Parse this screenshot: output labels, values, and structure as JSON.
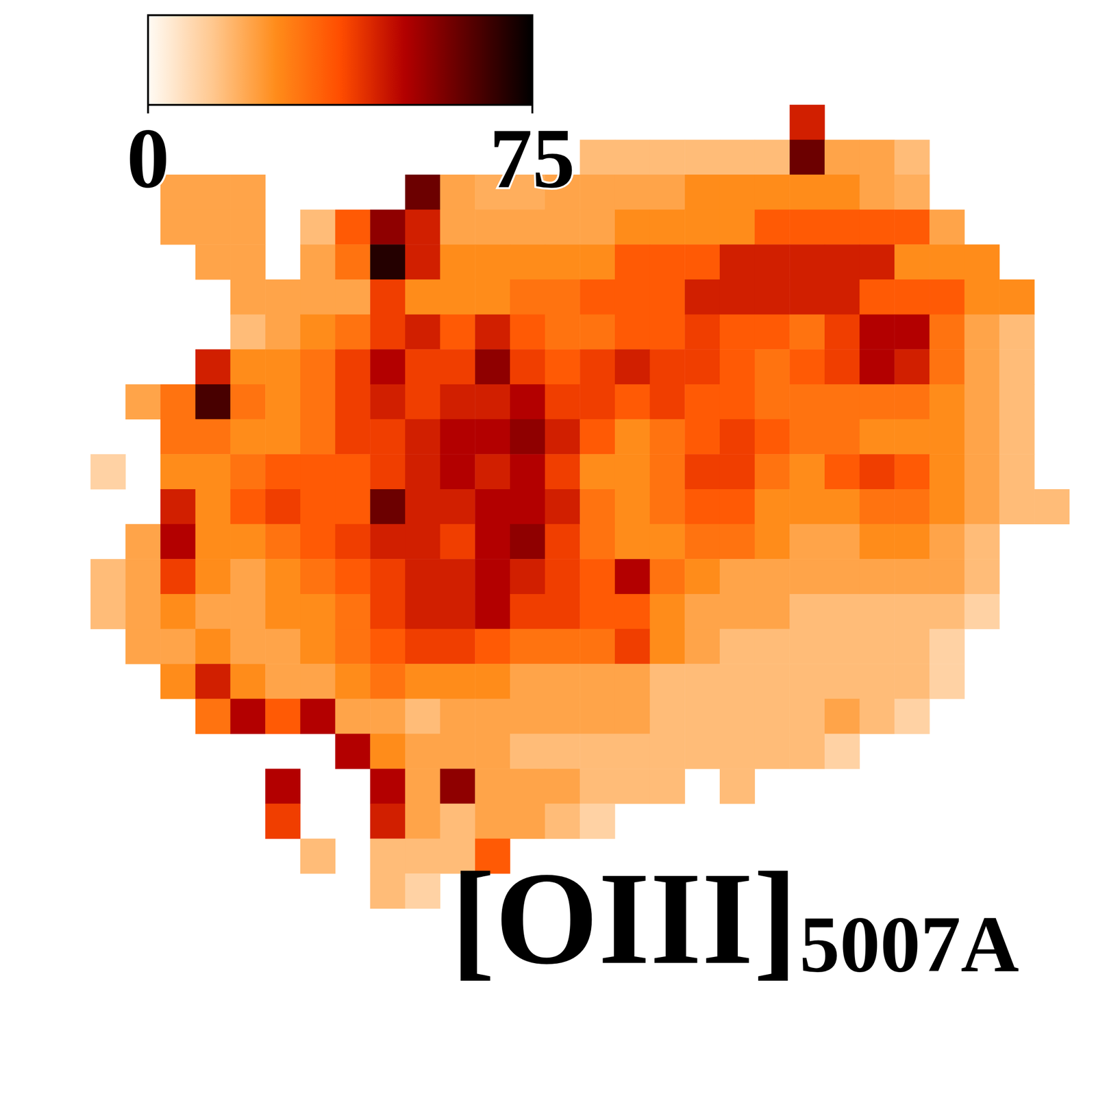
{
  "chart_data": {
    "type": "heatmap",
    "title": "[OIII]",
    "subtitle": "5007A",
    "tick_labels": false,
    "colorbar": {
      "range": [
        0,
        75
      ],
      "ticks": [
        0,
        75
      ]
    },
    "cells": [
      [
        null,
        null,
        null,
        null,
        null,
        null,
        null,
        null,
        null,
        null,
        null,
        null,
        null,
        null,
        null,
        null,
        null,
        null,
        null,
        null,
        45,
        null,
        null,
        null,
        null,
        null,
        null,
        null
      ],
      [
        null,
        null,
        null,
        null,
        null,
        null,
        null,
        null,
        null,
        null,
        null,
        null,
        null,
        null,
        15,
        15,
        15,
        15,
        15,
        15,
        60,
        20,
        20,
        15,
        null,
        null,
        null,
        null
      ],
      [
        null,
        null,
        20,
        20,
        20,
        null,
        null,
        null,
        null,
        60,
        20,
        18,
        18,
        20,
        20,
        20,
        20,
        25,
        25,
        25,
        25,
        25,
        20,
        18,
        null,
        null,
        null,
        null
      ],
      [
        null,
        null,
        20,
        20,
        20,
        null,
        15,
        35,
        55,
        45,
        20,
        20,
        20,
        20,
        20,
        25,
        25,
        25,
        25,
        35,
        35,
        35,
        35,
        35,
        20,
        null,
        null,
        null
      ],
      [
        null,
        null,
        null,
        20,
        20,
        null,
        20,
        30,
        70,
        45,
        25,
        25,
        25,
        25,
        25,
        35,
        35,
        35,
        45,
        45,
        45,
        45,
        45,
        25,
        25,
        25,
        null,
        null
      ],
      [
        null,
        null,
        null,
        null,
        20,
        20,
        20,
        20,
        40,
        25,
        25,
        25,
        30,
        30,
        35,
        35,
        35,
        45,
        45,
        45,
        45,
        45,
        35,
        35,
        35,
        25,
        25,
        null
      ],
      [
        null,
        null,
        null,
        null,
        15,
        20,
        25,
        30,
        40,
        45,
        35,
        45,
        35,
        30,
        30,
        35,
        35,
        40,
        35,
        35,
        30,
        40,
        50,
        50,
        30,
        20,
        15,
        null
      ],
      [
        null,
        null,
        null,
        45,
        25,
        25,
        30,
        40,
        50,
        40,
        40,
        55,
        40,
        35,
        40,
        45,
        40,
        40,
        35,
        30,
        35,
        40,
        50,
        45,
        30,
        20,
        15,
        null
      ],
      [
        null,
        20,
        30,
        65,
        30,
        25,
        30,
        40,
        45,
        40,
        45,
        45,
        50,
        40,
        40,
        35,
        40,
        35,
        35,
        30,
        30,
        30,
        30,
        30,
        25,
        20,
        15,
        null
      ],
      [
        null,
        null,
        30,
        30,
        25,
        25,
        30,
        40,
        40,
        45,
        50,
        50,
        55,
        45,
        35,
        25,
        30,
        35,
        40,
        35,
        30,
        30,
        25,
        25,
        25,
        20,
        15,
        null
      ],
      [
        10,
        null,
        25,
        25,
        30,
        35,
        35,
        35,
        40,
        45,
        50,
        45,
        50,
        40,
        25,
        25,
        30,
        40,
        40,
        30,
        25,
        35,
        40,
        35,
        25,
        20,
        15,
        null
      ],
      [
        null,
        null,
        45,
        25,
        35,
        40,
        35,
        35,
        60,
        45,
        45,
        50,
        50,
        45,
        30,
        25,
        30,
        35,
        35,
        25,
        25,
        25,
        30,
        30,
        25,
        20,
        15,
        15
      ],
      [
        null,
        20,
        50,
        25,
        25,
        30,
        35,
        40,
        45,
        45,
        40,
        50,
        55,
        40,
        30,
        25,
        25,
        30,
        30,
        25,
        20,
        20,
        25,
        25,
        20,
        15,
        null,
        null
      ],
      [
        15,
        20,
        40,
        25,
        20,
        25,
        30,
        35,
        40,
        45,
        45,
        50,
        45,
        40,
        35,
        50,
        30,
        25,
        20,
        20,
        20,
        20,
        20,
        20,
        20,
        15,
        null,
        null
      ],
      [
        15,
        20,
        25,
        20,
        20,
        25,
        25,
        30,
        40,
        45,
        45,
        50,
        40,
        40,
        35,
        35,
        25,
        20,
        20,
        20,
        15,
        15,
        15,
        15,
        15,
        10,
        null,
        null
      ],
      [
        null,
        20,
        20,
        25,
        20,
        20,
        25,
        30,
        35,
        40,
        40,
        35,
        30,
        30,
        30,
        40,
        25,
        20,
        15,
        15,
        15,
        15,
        15,
        15,
        10,
        null,
        null,
        null
      ],
      [
        null,
        null,
        25,
        45,
        25,
        20,
        20,
        25,
        30,
        25,
        25,
        25,
        20,
        20,
        20,
        20,
        15,
        15,
        15,
        15,
        15,
        15,
        15,
        15,
        10,
        null,
        null,
        null
      ],
      [
        null,
        null,
        null,
        30,
        50,
        35,
        50,
        20,
        20,
        15,
        20,
        20,
        20,
        20,
        20,
        20,
        15,
        15,
        15,
        15,
        15,
        20,
        15,
        10,
        null,
        null,
        null,
        null
      ],
      [
        null,
        null,
        null,
        null,
        null,
        null,
        null,
        50,
        25,
        20,
        20,
        20,
        15,
        15,
        15,
        15,
        15,
        15,
        15,
        15,
        15,
        10,
        null,
        null,
        null,
        null,
        null,
        null
      ],
      [
        null,
        null,
        null,
        null,
        null,
        50,
        null,
        null,
        50,
        20,
        55,
        20,
        20,
        20,
        15,
        15,
        15,
        null,
        15,
        null,
        null,
        null,
        null,
        null,
        null,
        null,
        null,
        null
      ],
      [
        null,
        null,
        null,
        null,
        null,
        40,
        null,
        null,
        45,
        20,
        15,
        20,
        20,
        15,
        10,
        null,
        null,
        null,
        null,
        null,
        null,
        null,
        null,
        null,
        null,
        null,
        null,
        null
      ],
      [
        null,
        null,
        null,
        null,
        null,
        null,
        15,
        null,
        15,
        15,
        15,
        35,
        null,
        null,
        null,
        null,
        null,
        null,
        null,
        null,
        null,
        null,
        null,
        null,
        null,
        null,
        null,
        null
      ],
      [
        null,
        null,
        null,
        null,
        null,
        null,
        null,
        null,
        15,
        10,
        null,
        null,
        null,
        null,
        null,
        null,
        null,
        null,
        null,
        null,
        null,
        null,
        null,
        null,
        null,
        null,
        null,
        null
      ]
    ]
  }
}
